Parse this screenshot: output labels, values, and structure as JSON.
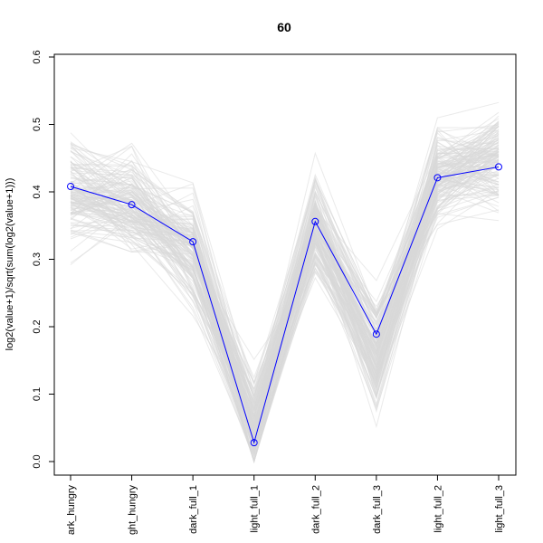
{
  "chart_data": {
    "type": "line",
    "title": "60",
    "xlabel": "",
    "ylabel": "log2(value+1)/sqrt(sum(log2(value+1)))",
    "categories": [
      "dark_hungry",
      "light_hungry",
      "dark_full_1",
      "light_full_1",
      "dark_full_2",
      "dark_full_3",
      "light_full_2",
      "light_full_3"
    ],
    "category_labels_visible": [
      "ark_hungry",
      "ght_hungry",
      "dark_full_1",
      "light_full_1",
      "dark_full_2",
      "dark_full_3",
      "light_full_2",
      "light_full_3"
    ],
    "ylim": [
      0,
      0.6
    ],
    "y_ticks": [
      "0.0",
      "0.1",
      "0.2",
      "0.3",
      "0.4",
      "0.5",
      "0.6"
    ],
    "grid": false,
    "legend": "none",
    "highlight_series": {
      "color": "#0000ff",
      "values": [
        0.408,
        0.381,
        0.326,
        0.028,
        0.356,
        0.189,
        0.421,
        0.437
      ]
    },
    "background_series_color": "#d9d9d9",
    "background_series_count": 150
  }
}
